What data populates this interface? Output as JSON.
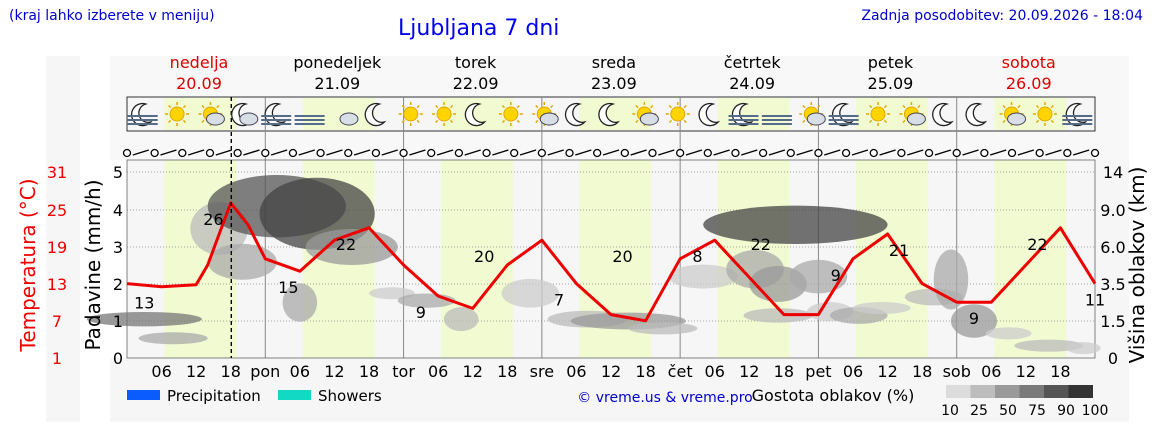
{
  "header": {
    "left_note": "(kraj lahko izberete v meniju)",
    "title": "Ljubljana 7 dni",
    "updated": "Zadnja posodobitev: 20.09.2026 - 18:04"
  },
  "days": [
    {
      "name": "nedelja",
      "date": "20.09",
      "weekend": true
    },
    {
      "name": "ponedeljek",
      "date": "21.09",
      "weekend": false
    },
    {
      "name": "torek",
      "date": "22.09",
      "weekend": false
    },
    {
      "name": "sreda",
      "date": "23.09",
      "weekend": false
    },
    {
      "name": "četrtek",
      "date": "24.09",
      "weekend": false
    },
    {
      "name": "petek",
      "date": "25.09",
      "weekend": false
    },
    {
      "name": "sobota",
      "date": "26.09",
      "weekend": true
    }
  ],
  "weather_icons": [
    "moon-fog",
    "sun",
    "sun-cloud",
    "cloud-moon",
    "moon-fog",
    "fog",
    "cloud",
    "moon",
    "sun",
    "sun",
    "moon",
    "sun",
    "sun-cloud",
    "moon",
    "moon",
    "sun-cloud",
    "sun",
    "moon",
    "moon-fog",
    "fog",
    "sun-cloud",
    "moon-fog",
    "sun",
    "sun-cloud",
    "moon",
    "moon",
    "sun-cloud",
    "sun",
    "moon-fog"
  ],
  "wind_row": "wind-barbs",
  "x_axis": {
    "labels": [
      "06",
      "12",
      "18",
      "pon",
      "06",
      "12",
      "18",
      "tor",
      "06",
      "12",
      "18",
      "sre",
      "06",
      "12",
      "18",
      "čet",
      "06",
      "12",
      "18",
      "pet",
      "06",
      "12",
      "18",
      "sob",
      "06",
      "12",
      "18"
    ]
  },
  "chart_data": {
    "type": "line",
    "title": "Ljubljana 7 dni",
    "x_unit": "hours since 20.09 00:00",
    "series": [
      {
        "name": "Temperatura (°C)",
        "color": "#ee0000",
        "x": [
          0,
          6,
          12,
          14,
          18,
          21,
          24,
          30,
          36,
          42,
          48,
          54,
          60,
          66,
          72,
          78,
          84,
          90,
          96,
          102,
          108,
          114,
          120,
          126,
          132,
          138,
          144,
          150,
          156,
          162,
          168
        ],
        "y": [
          13,
          12.5,
          12.8,
          16,
          26,
          22.5,
          17,
          15,
          20,
          22,
          16,
          11,
          9,
          16,
          20,
          13,
          8,
          7,
          17,
          20,
          14,
          8,
          8,
          17,
          21,
          13,
          10,
          10,
          16,
          22,
          13
        ]
      }
    ],
    "temp_min_labels": [
      {
        "x": 3,
        "value": "13"
      },
      {
        "x": 28,
        "value": "15"
      },
      {
        "x": 51,
        "value": "9"
      },
      {
        "x": 75,
        "value": "7"
      },
      {
        "x": 99,
        "value": "8"
      },
      {
        "x": 123,
        "value": "9"
      },
      {
        "x": 147,
        "value": "9"
      },
      {
        "x": 168,
        "value": "11"
      }
    ],
    "temp_max_labels": [
      {
        "x": 15,
        "value": "26"
      },
      {
        "x": 38,
        "value": "22"
      },
      {
        "x": 62,
        "value": "20"
      },
      {
        "x": 86,
        "value": "20"
      },
      {
        "x": 110,
        "value": "22"
      },
      {
        "x": 134,
        "value": "21"
      },
      {
        "x": 158,
        "value": "22"
      }
    ],
    "y_left_temp": {
      "label": "Temperatura (°C)",
      "ticks": [
        "31",
        "25",
        "19",
        "13",
        "7",
        "1"
      ]
    },
    "y_left_precip": {
      "label": "Padavine (mm/h)",
      "ticks": [
        "5",
        "4",
        "3",
        "2",
        "1",
        "0"
      ]
    },
    "y_right": {
      "label": "Višina oblakov (km)",
      "ticks": [
        "14",
        "9.0",
        "6.0",
        "3.5",
        "1.5",
        "0"
      ]
    },
    "cloud_density_scale": {
      "title": "Gostota oblakov (%)",
      "ticks": [
        "10",
        "25",
        "50",
        "75",
        "90",
        "100"
      ],
      "colors": [
        "#dcdcdc",
        "#bdbdbd",
        "#9a9a9a",
        "#7a7a7a",
        "#555555",
        "#333333"
      ]
    },
    "legend": [
      {
        "label": "Precipitation",
        "color": "#0a5cff"
      },
      {
        "label": "Showers",
        "color": "#11d9c4"
      }
    ],
    "copyright": "© vreme.us & vreme.pro",
    "now_hour": 18.1
  },
  "colors": {
    "weekend": "#dd0000",
    "temp": "#ee0000",
    "daylight": "#f2fad2",
    "night": "#f6f6f6"
  }
}
